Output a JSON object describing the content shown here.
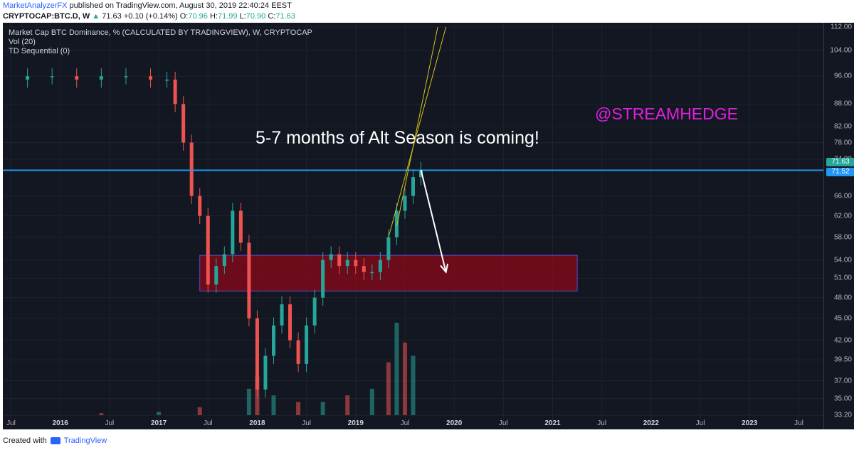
{
  "header": {
    "author": "MarketAnalyzerFX",
    "published_text": "published on TradingView.com, August 30, 2019 22:40:24 EEST",
    "symbol": "CRYPTOCAP:BTC.D, W",
    "last": "71.63",
    "change": "+0.10 (+0.14%)",
    "open_label": "O:",
    "open": "70.96",
    "high_label": "H:",
    "high": "71.99",
    "low_label": "L:",
    "low": "70.90",
    "close_label": "C:",
    "close": "71.63"
  },
  "indicators": {
    "title": "Market Cap BTC Dominance, % (CALCULATED BY TRADINGVIEW), W, CRYPTOCAP",
    "vol": "Vol (20)",
    "td": "TD Sequential (0)"
  },
  "annotations": {
    "headline": "5-7 months of Alt Season is coming!",
    "handle": "@STREAMHEDGE"
  },
  "price_tags": {
    "upper": "71.63",
    "lower": "71.52"
  },
  "footer": {
    "created": "Created with",
    "brand": "TradingView"
  },
  "colors": {
    "background": "#131722",
    "up": "#26a69a",
    "down": "#ef5350",
    "horizontal_level": "#2196f3",
    "headline": "#ffffff",
    "handle": "#e020e0",
    "zone": "#8b0a1a",
    "trendline": "#d4c21a"
  },
  "chart_data": {
    "type": "candlestick",
    "title": "Market Cap BTC Dominance, % (CALCULATED BY TRADINGVIEW), W, CRYPTOCAP",
    "y_scale": "log",
    "ylim": [
      32.2,
      112.0
    ],
    "y_ticks": [
      "112.00",
      "104.00",
      "96.00",
      "88.00",
      "82.00",
      "78.00",
      "74.00",
      "66.00",
      "62.00",
      "58.00",
      "54.00",
      "51.00",
      "48.00",
      "45.00",
      "42.00",
      "39.50",
      "37.00",
      "35.00",
      "33.20"
    ],
    "x_ticks": [
      "Jul",
      "2016",
      "Jul",
      "2017",
      "Jul",
      "2018",
      "Jul",
      "2019",
      "Jul",
      "2020",
      "Jul",
      "2021",
      "Jul",
      "2022",
      "Jul",
      "2023",
      "Jul"
    ],
    "x_range": [
      "2015-06",
      "2023-10"
    ],
    "series": [
      {
        "date": "2015-06",
        "value": 95
      },
      {
        "date": "2015-09",
        "value": 96
      },
      {
        "date": "2015-12",
        "value": 96
      },
      {
        "date": "2016-03",
        "value": 95
      },
      {
        "date": "2016-06",
        "value": 96
      },
      {
        "date": "2016-09",
        "value": 96
      },
      {
        "date": "2016-12",
        "value": 95
      },
      {
        "date": "2017-02",
        "value": 95
      },
      {
        "date": "2017-03",
        "value": 88
      },
      {
        "date": "2017-04",
        "value": 78
      },
      {
        "date": "2017-05",
        "value": 66
      },
      {
        "date": "2017-06",
        "value": 62
      },
      {
        "date": "2017-07",
        "value": 50
      },
      {
        "date": "2017-08",
        "value": 53
      },
      {
        "date": "2017-09",
        "value": 55
      },
      {
        "date": "2017-10",
        "value": 63
      },
      {
        "date": "2017-11",
        "value": 57
      },
      {
        "date": "2017-12",
        "value": 45
      },
      {
        "date": "2018-01",
        "value": 36
      },
      {
        "date": "2018-02",
        "value": 40
      },
      {
        "date": "2018-03",
        "value": 44
      },
      {
        "date": "2018-04",
        "value": 47
      },
      {
        "date": "2018-05",
        "value": 42
      },
      {
        "date": "2018-06",
        "value": 39
      },
      {
        "date": "2018-07",
        "value": 44
      },
      {
        "date": "2018-08",
        "value": 48
      },
      {
        "date": "2018-09",
        "value": 54
      },
      {
        "date": "2018-10",
        "value": 55
      },
      {
        "date": "2018-11",
        "value": 53
      },
      {
        "date": "2018-12",
        "value": 54
      },
      {
        "date": "2019-01",
        "value": 53
      },
      {
        "date": "2019-02",
        "value": 52
      },
      {
        "date": "2019-03",
        "value": 52
      },
      {
        "date": "2019-04",
        "value": 54
      },
      {
        "date": "2019-05",
        "value": 58
      },
      {
        "date": "2019-06",
        "value": 63
      },
      {
        "date": "2019-07",
        "value": 66
      },
      {
        "date": "2019-08",
        "value": 70
      },
      {
        "date": "2019-08-30",
        "value": 71.63
      }
    ],
    "volume": [
      {
        "date": "2016-06",
        "value": 0.3
      },
      {
        "date": "2017-01",
        "value": 0.5
      },
      {
        "date": "2017-06",
        "value": 1.2
      },
      {
        "date": "2017-12",
        "value": 4
      },
      {
        "date": "2018-01",
        "value": 6
      },
      {
        "date": "2018-03",
        "value": 3
      },
      {
        "date": "2018-06",
        "value": 2
      },
      {
        "date": "2018-09",
        "value": 2
      },
      {
        "date": "2018-12",
        "value": 3
      },
      {
        "date": "2019-03",
        "value": 4
      },
      {
        "date": "2019-05",
        "value": 8
      },
      {
        "date": "2019-06",
        "value": 14
      },
      {
        "date": "2019-07",
        "value": 11
      },
      {
        "date": "2019-08",
        "value": 9
      }
    ],
    "horizontal_level": 71.52,
    "support_zone": {
      "from": "2017-06",
      "to": "2021-04",
      "low": 49.0,
      "high": 54.8
    },
    "projection_arrow": {
      "from_date": "2019-08-30",
      "from_value": 71.6,
      "to_date": "2019-12",
      "to_value": 52.0
    },
    "trendlines": [
      {
        "from_date": "2019-05",
        "from_value": 58,
        "to_date": "2019-12",
        "to_value": 112
      },
      {
        "from_date": "2019-06",
        "from_value": 60,
        "to_date": "2019-11",
        "to_value": 112
      }
    ]
  }
}
